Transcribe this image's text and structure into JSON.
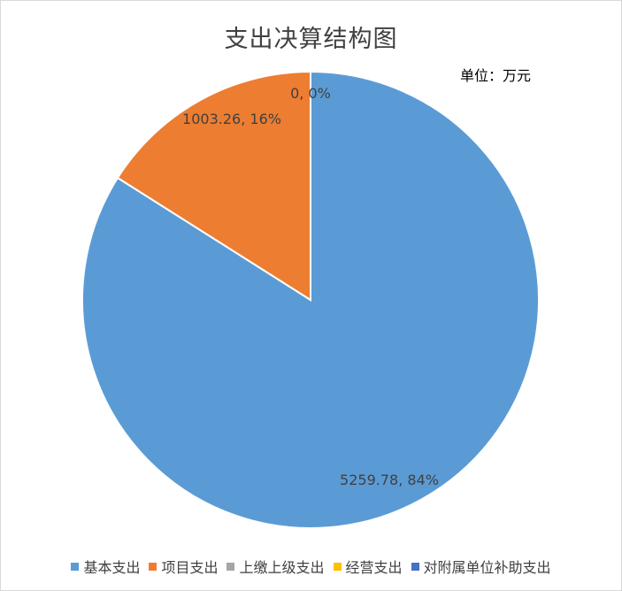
{
  "chart_data": {
    "type": "pie",
    "title": "支出决算结构图",
    "unit_note": "单位：万元",
    "series": [
      {
        "name": "基本支出",
        "value": 5259.78,
        "percent": 84,
        "label": "5259.78, 84%",
        "color": "#5b9bd5"
      },
      {
        "name": "项目支出",
        "value": 1003.26,
        "percent": 16,
        "label": "1003.26, 16%",
        "color": "#ed7d31"
      },
      {
        "name": "上缴上级支出",
        "value": 0,
        "percent": 0,
        "label": "0, 0%",
        "color": "#a5a5a5"
      },
      {
        "name": "经营支出",
        "value": 0,
        "percent": 0,
        "label": "",
        "color": "#ffc000"
      },
      {
        "name": "对附属单位补助支出",
        "value": 0,
        "percent": 0,
        "label": "",
        "color": "#4472c4"
      }
    ],
    "legend_position": "bottom"
  }
}
